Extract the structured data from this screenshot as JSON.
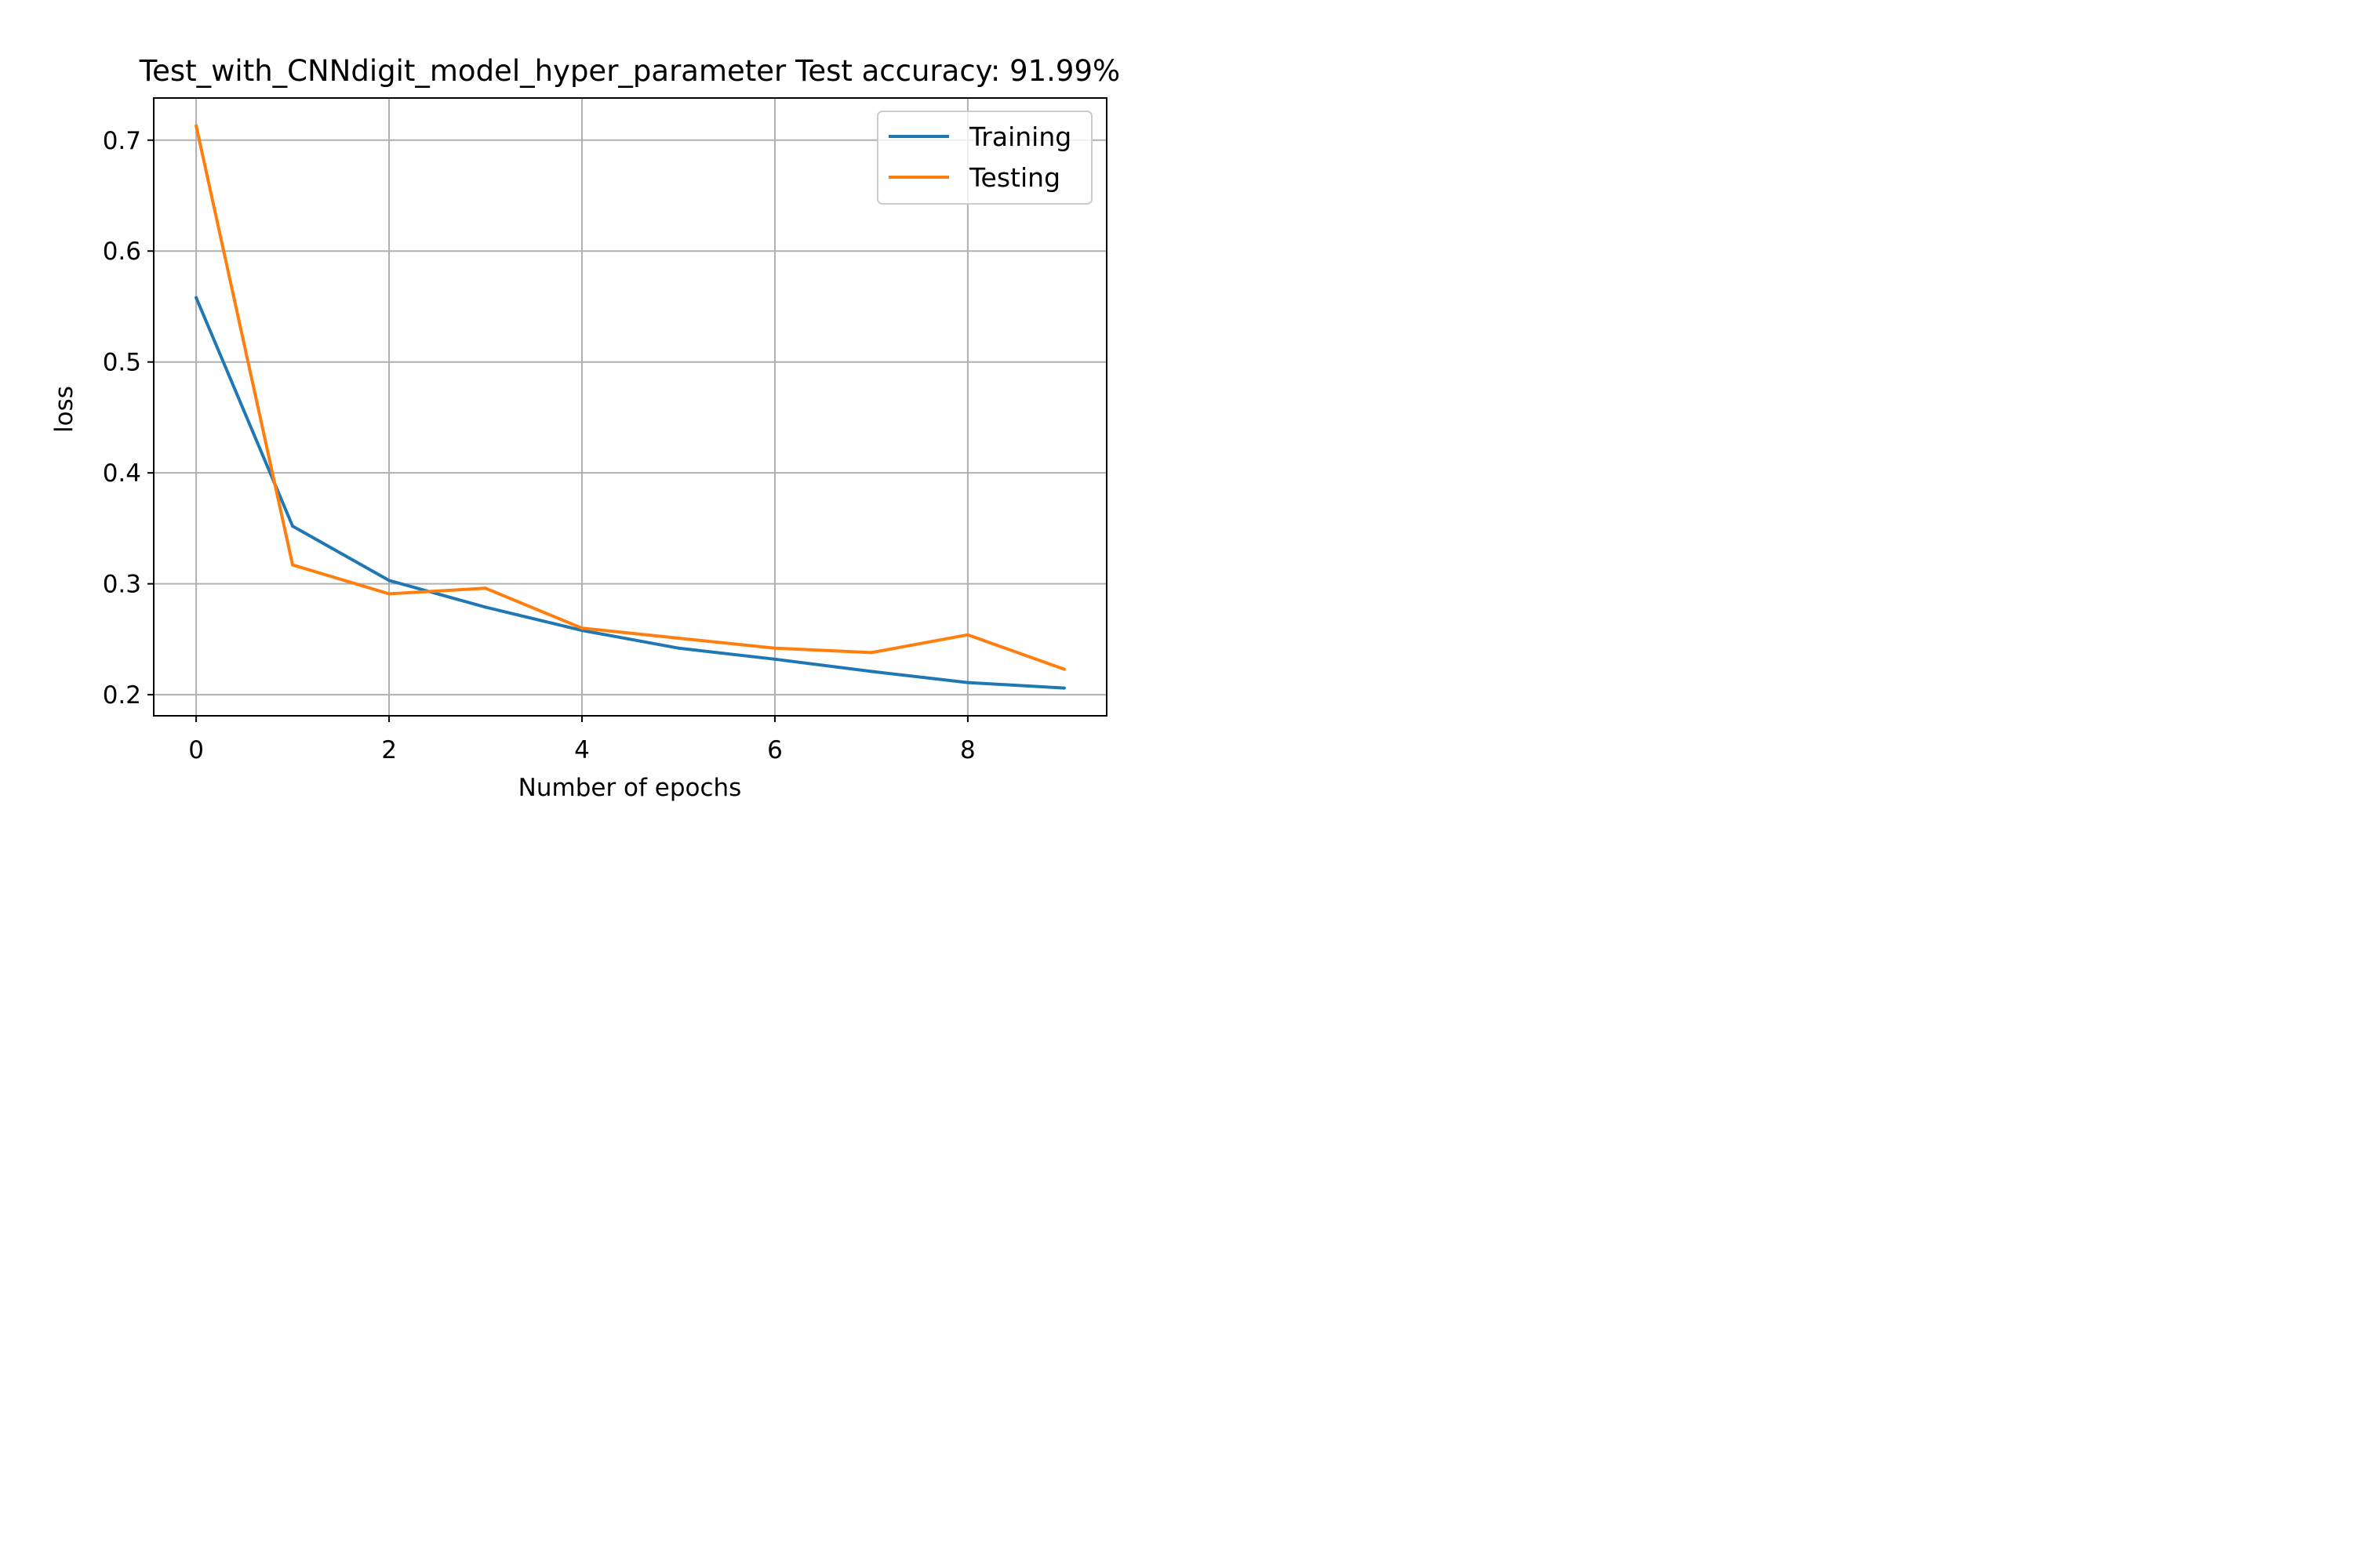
{
  "chart_data": {
    "type": "line",
    "title": "Test_with_CNNdigit_model_hyper_parameter Test accuracy: 91.99%",
    "xlabel": "Number of epochs",
    "ylabel": "loss",
    "x": [
      0,
      1,
      2,
      3,
      4,
      5,
      6,
      7,
      8,
      9
    ],
    "xlim": [
      -0.44,
      9.44
    ],
    "ylim": [
      0.181,
      0.738
    ],
    "xticks": [
      0,
      2,
      4,
      6,
      8
    ],
    "xtick_labels": [
      "0",
      "2",
      "4",
      "6",
      "8"
    ],
    "yticks": [
      0.2,
      0.3,
      0.4,
      0.5,
      0.6,
      0.7
    ],
    "ytick_labels": [
      "0.2",
      "0.3",
      "0.4",
      "0.5",
      "0.6",
      "0.7"
    ],
    "grid": true,
    "legend_position": "top-right",
    "series": [
      {
        "name": "Training",
        "color": "#1f77b4",
        "values": [
          0.558,
          0.352,
          0.303,
          0.279,
          0.258,
          0.242,
          0.232,
          0.221,
          0.211,
          0.206
        ]
      },
      {
        "name": "Testing",
        "color": "#ff7f0e",
        "values": [
          0.713,
          0.317,
          0.291,
          0.296,
          0.26,
          0.251,
          0.242,
          0.238,
          0.254,
          0.223
        ]
      }
    ]
  }
}
